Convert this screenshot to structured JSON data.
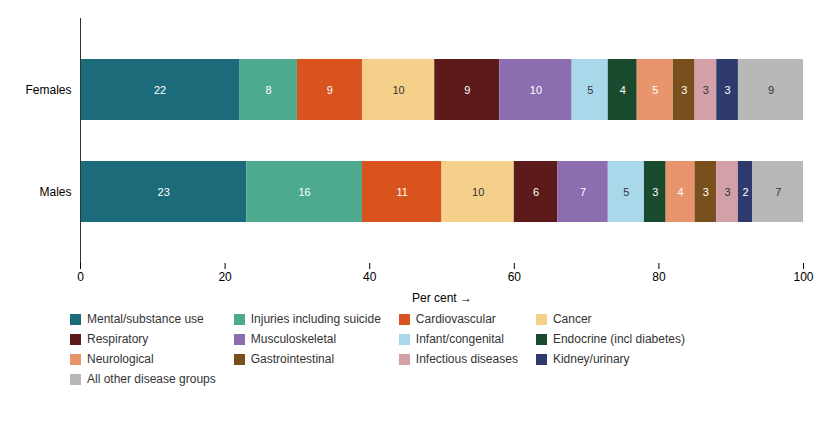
{
  "chart_data": {
    "type": "bar",
    "orientation": "horizontal",
    "stacked": true,
    "categories": [
      "Males",
      "Females"
    ],
    "series": [
      {
        "name": "Mental/substance use",
        "color": "#1c6b7a",
        "values": [
          23,
          22
        ]
      },
      {
        "name": "Injuries including suicide",
        "color": "#4daa8f",
        "values": [
          16,
          8
        ]
      },
      {
        "name": "Cardiovascular",
        "color": "#d9531e",
        "values": [
          11,
          9
        ]
      },
      {
        "name": "Cancer",
        "color": "#f5d08a",
        "values": [
          10,
          10
        ]
      },
      {
        "name": "Respiratory",
        "color": "#5c1a1a",
        "values": [
          6,
          9
        ]
      },
      {
        "name": "Musculoskeletal",
        "color": "#8b6db0",
        "values": [
          7,
          10
        ]
      },
      {
        "name": "Infant/congenital",
        "color": "#a8d8ea",
        "values": [
          5,
          5
        ]
      },
      {
        "name": "Endocrine (incl diabetes)",
        "color": "#1a4a2e",
        "values": [
          3,
          4
        ]
      },
      {
        "name": "Neurological",
        "color": "#e8956d",
        "values": [
          4,
          5
        ]
      },
      {
        "name": "Gastrointestinal",
        "color": "#7a4f1e",
        "values": [
          3,
          3
        ]
      },
      {
        "name": "Infectious diseases",
        "color": "#d4a0a8",
        "values": [
          3,
          3
        ]
      },
      {
        "name": "Kidney/urinary",
        "color": "#2e3a6e",
        "values": [
          2,
          3
        ]
      },
      {
        "name": "All other disease groups",
        "color": "#b8b8b8",
        "values": [
          7,
          9
        ]
      }
    ],
    "xlabel": "Per cent",
    "xlim": [
      0,
      100
    ],
    "xticks": [
      0,
      20,
      40,
      60,
      80,
      100
    ],
    "data_labels": true,
    "grid": false,
    "legend": "bottom"
  }
}
